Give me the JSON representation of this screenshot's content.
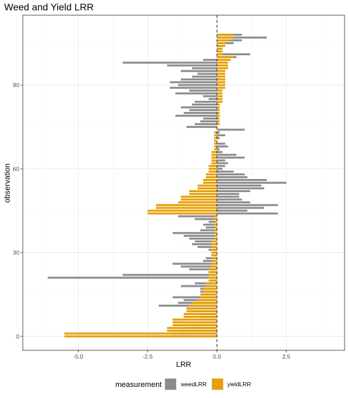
{
  "chart_data": {
    "type": "bar",
    "orientation": "horizontal",
    "title": "Weed and Yield LRR",
    "xlabel": "LRR",
    "ylabel": "observation",
    "xlim": [
      -7.0,
      4.6
    ],
    "ylim": [
      -5,
      115
    ],
    "xticks": [
      -5.0,
      -2.5,
      0.0,
      2.5
    ],
    "xtick_labels": [
      "-5.0",
      "-2.5",
      "0.0",
      "2.5"
    ],
    "yticks": [
      0,
      30,
      60,
      90
    ],
    "ytick_labels": [
      "0",
      "30",
      "60",
      "90"
    ],
    "grid": true,
    "reference_line": {
      "x": 0,
      "style": "dashed"
    },
    "legend": {
      "title": "measurement",
      "position": "bottom"
    },
    "colors": {
      "weedLRR": "#8c8c8c",
      "yieldLRR": "#e69f00"
    },
    "series": [
      {
        "name": "weedLRR",
        "observations": [
          0,
          1,
          2,
          3,
          4,
          5,
          6,
          7,
          8,
          9,
          10,
          11,
          12,
          13,
          14,
          15,
          16,
          17,
          18,
          19,
          20,
          21,
          22,
          23,
          24,
          25,
          26,
          27,
          28,
          29,
          30,
          31,
          32,
          33,
          34,
          35,
          36,
          37,
          38,
          39,
          40,
          41,
          42,
          43,
          44,
          45,
          46,
          47,
          48,
          49,
          50,
          51,
          52,
          53,
          54,
          55,
          56,
          57,
          58,
          59,
          60,
          61,
          62,
          63,
          64,
          65,
          66,
          67,
          68,
          69,
          70,
          71,
          72,
          73,
          74,
          75,
          76,
          77,
          78,
          79,
          80,
          81,
          82,
          83,
          84,
          85,
          86,
          87,
          88,
          89,
          90,
          91,
          92,
          93,
          94,
          95,
          96,
          97,
          98,
          99,
          100,
          101,
          102,
          103,
          104,
          105,
          106,
          107,
          108
        ],
        "values": [
          -2.5,
          -1.6,
          -1.4,
          -1.0,
          -0.9,
          -0.7,
          -0.6,
          -0.5,
          -0.6,
          -0.9,
          -1.1,
          -2.1,
          -1.4,
          -1.2,
          -1.6,
          -0.5,
          -0.6,
          -0.6,
          -1.3,
          -0.8,
          -0.2,
          -6.1,
          -3.4,
          -0.3,
          -1.0,
          -1.3,
          -1.6,
          -0.5,
          -0.4,
          -0.2,
          -0.2,
          -0.3,
          -0.7,
          -0.9,
          -0.8,
          -1.0,
          -1.2,
          -1.6,
          -0.6,
          -0.4,
          -0.5,
          -0.3,
          -0.8,
          -1.4,
          2.2,
          1.1,
          1.7,
          2.2,
          1.2,
          0.9,
          0.8,
          0.8,
          1.2,
          1.7,
          1.6,
          2.5,
          1.8,
          1.1,
          1.0,
          0.6,
          0.2,
          0.3,
          0.4,
          0.3,
          1.0,
          0.7,
          0.2,
          0.1,
          0.4,
          0.3,
          -0.1,
          0.1,
          0.3,
          0.1,
          1.0,
          -1.1,
          -0.8,
          -0.6,
          -0.5,
          -1.5,
          -1.2,
          -1.0,
          -1.3,
          -0.9,
          -0.8,
          -0.3,
          -0.5,
          -1.5,
          -1.0,
          -1.7,
          -1.4,
          -1.7,
          -1.3,
          -0.9,
          -0.7,
          -1.3,
          -0.9,
          -1.8,
          -3.4,
          -0.5,
          0.7,
          1.2,
          0.2,
          0.2,
          0.2,
          0.6,
          0.9,
          1.8,
          0.9
        ]
      },
      {
        "name": "yieldLRR",
        "observations": [
          0,
          1,
          2,
          3,
          4,
          5,
          6,
          7,
          8,
          9,
          10,
          11,
          12,
          13,
          14,
          15,
          16,
          17,
          18,
          19,
          20,
          21,
          22,
          23,
          24,
          25,
          26,
          27,
          28,
          29,
          30,
          31,
          32,
          33,
          34,
          35,
          36,
          37,
          38,
          39,
          40,
          41,
          42,
          43,
          44,
          45,
          46,
          47,
          48,
          49,
          50,
          51,
          52,
          53,
          54,
          55,
          56,
          57,
          58,
          59,
          60,
          61,
          62,
          63,
          64,
          65,
          66,
          67,
          68,
          69,
          70,
          71,
          72,
          73,
          74,
          75,
          76,
          77,
          78,
          79,
          80,
          81,
          82,
          83,
          84,
          85,
          86,
          87,
          88,
          89,
          90,
          91,
          92,
          93,
          94,
          95,
          96,
          97,
          98,
          99,
          100,
          101,
          102,
          103,
          104,
          105,
          106,
          107,
          108
        ],
        "values": [
          -5.5,
          -5.5,
          -1.8,
          -1.8,
          -1.6,
          -1.6,
          -1.6,
          -1.2,
          -1.2,
          -1.1,
          -1.1,
          -1.0,
          -0.9,
          -0.7,
          -0.6,
          -0.6,
          -0.5,
          -0.5,
          -0.4,
          -0.4,
          -0.3,
          -0.3,
          -0.3,
          -0.3,
          -0.3,
          -0.2,
          -0.2,
          -0.2,
          -0.2,
          -0.2,
          -0.2,
          -0.2,
          -0.2,
          -0.2,
          -0.2,
          -0.1,
          -0.1,
          -0.1,
          -0.1,
          -0.1,
          -0.1,
          -0.1,
          -0.1,
          -0.1,
          -2.5,
          -2.5,
          -2.2,
          -2.2,
          -1.4,
          -1.3,
          -1.3,
          -1.0,
          -1.0,
          -0.7,
          -0.7,
          -0.5,
          -0.5,
          -0.4,
          -0.4,
          -0.3,
          -0.3,
          -0.3,
          -0.2,
          -0.2,
          -0.2,
          -0.2,
          -0.2,
          -0.1,
          -0.1,
          -0.1,
          -0.1,
          -0.1,
          -0.1,
          -0.1,
          0.0,
          0.0,
          0.1,
          0.1,
          0.1,
          0.1,
          0.1,
          0.1,
          0.1,
          0.1,
          0.2,
          0.2,
          0.2,
          0.2,
          0.2,
          0.3,
          0.3,
          0.3,
          0.3,
          0.3,
          0.3,
          0.3,
          0.4,
          0.4,
          0.4,
          0.5,
          0.6,
          0.2,
          0.2,
          0.2,
          0.3,
          0.3,
          0.5,
          0.6,
          0.6
        ]
      }
    ]
  }
}
